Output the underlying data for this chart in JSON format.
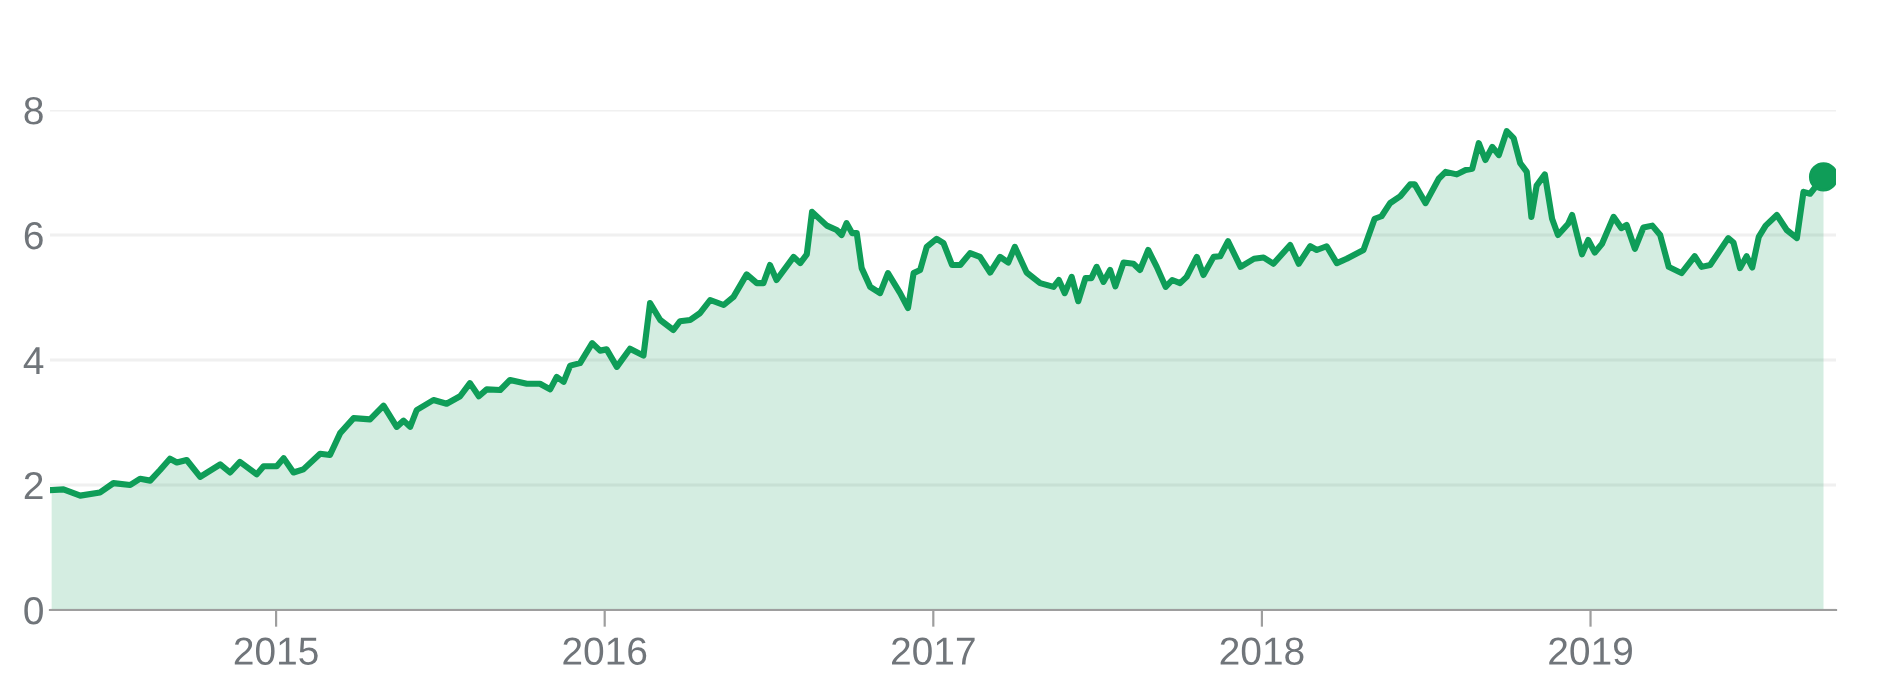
{
  "chart_data": {
    "type": "area",
    "xlim": [
      2014.312,
      2019.747
    ],
    "xticks": [
      2015,
      2016,
      2017,
      2018,
      2019
    ],
    "ylim": [
      0,
      8
    ],
    "yticks": [
      0,
      2,
      4,
      6,
      8
    ],
    "grid": "y",
    "series": [
      {
        "color": "#0f9d58",
        "x": [
          2014.317,
          2014.353,
          2014.404,
          2014.464,
          2014.505,
          2014.556,
          2014.586,
          2014.617,
          2014.647,
          2014.677,
          2014.698,
          2014.728,
          2014.769,
          2014.83,
          2014.86,
          2014.89,
          2014.941,
          2014.962,
          2015.002,
          2015.023,
          2015.053,
          2015.083,
          2015.134,
          2015.164,
          2015.195,
          2015.236,
          2015.286,
          2015.327,
          2015.367,
          2015.388,
          2015.408,
          2015.428,
          2015.479,
          2015.519,
          2015.56,
          2015.59,
          2015.617,
          2015.641,
          2015.682,
          2015.712,
          2015.763,
          2015.803,
          2015.834,
          2015.854,
          2015.875,
          2015.895,
          2015.925,
          2015.962,
          2015.986,
          2016.006,
          2016.037,
          2016.077,
          2016.118,
          2016.138,
          2016.169,
          2016.209,
          2016.229,
          2016.26,
          2016.29,
          2016.321,
          2016.362,
          2016.392,
          2016.432,
          2016.463,
          2016.483,
          2016.503,
          2016.523,
          2016.575,
          2016.595,
          2016.615,
          2016.631,
          2016.676,
          2016.706,
          2016.721,
          2016.736,
          2016.753,
          2016.767,
          2016.782,
          2016.808,
          2016.838,
          2016.862,
          2016.899,
          2016.923,
          2016.94,
          2016.96,
          2016.98,
          2017.01,
          2017.031,
          2017.057,
          2017.082,
          2017.112,
          2017.142,
          2017.173,
          2017.203,
          2017.228,
          2017.248,
          2017.284,
          2017.325,
          2017.366,
          2017.382,
          2017.4,
          2017.421,
          2017.441,
          2017.463,
          2017.481,
          2017.497,
          2017.518,
          2017.538,
          2017.554,
          2017.579,
          2017.609,
          2017.629,
          2017.654,
          2017.68,
          2017.707,
          2017.727,
          2017.751,
          2017.771,
          2017.802,
          2017.822,
          2017.853,
          2017.873,
          2017.897,
          2017.935,
          2017.976,
          2018.005,
          2018.035,
          2018.086,
          2018.112,
          2018.147,
          2018.167,
          2018.197,
          2018.228,
          2018.258,
          2018.309,
          2018.343,
          2018.364,
          2018.39,
          2018.421,
          2018.451,
          2018.465,
          2018.498,
          2018.538,
          2018.559,
          2018.593,
          2018.62,
          2018.64,
          2018.66,
          2018.68,
          2018.701,
          2018.721,
          2018.745,
          2018.766,
          2018.786,
          2018.806,
          2018.82,
          2018.836,
          2018.861,
          2018.883,
          2018.901,
          2018.932,
          2018.944,
          2018.974,
          2018.993,
          2019.013,
          2019.035,
          2019.07,
          2019.094,
          2019.11,
          2019.135,
          2019.161,
          2019.188,
          2019.212,
          2019.238,
          2019.277,
          2019.317,
          2019.338,
          2019.364,
          2019.419,
          2019.435,
          2019.455,
          2019.475,
          2019.492,
          2019.512,
          2019.533,
          2019.567,
          2019.597,
          2019.628,
          2019.648,
          2019.668,
          2019.709
        ],
        "values": [
          1.92,
          1.93,
          1.83,
          1.88,
          2.03,
          2.0,
          2.1,
          2.07,
          2.24,
          2.42,
          2.36,
          2.4,
          2.13,
          2.33,
          2.2,
          2.37,
          2.17,
          2.3,
          2.3,
          2.43,
          2.2,
          2.25,
          2.5,
          2.48,
          2.83,
          3.07,
          3.05,
          3.27,
          2.93,
          3.03,
          2.93,
          3.2,
          3.36,
          3.3,
          3.42,
          3.63,
          3.42,
          3.53,
          3.52,
          3.68,
          3.62,
          3.62,
          3.53,
          3.73,
          3.65,
          3.91,
          3.95,
          4.27,
          4.15,
          4.17,
          3.89,
          4.18,
          4.07,
          4.91,
          4.64,
          4.48,
          4.62,
          4.64,
          4.75,
          4.96,
          4.88,
          5.01,
          5.37,
          5.23,
          5.23,
          5.52,
          5.28,
          5.65,
          5.55,
          5.69,
          6.37,
          6.15,
          6.08,
          6.0,
          6.19,
          6.03,
          6.03,
          5.47,
          5.17,
          5.07,
          5.39,
          5.07,
          4.83,
          5.39,
          5.44,
          5.81,
          5.94,
          5.87,
          5.52,
          5.52,
          5.71,
          5.65,
          5.4,
          5.65,
          5.56,
          5.81,
          5.4,
          5.23,
          5.17,
          5.28,
          5.07,
          5.33,
          4.94,
          5.31,
          5.31,
          5.49,
          5.25,
          5.44,
          5.18,
          5.56,
          5.54,
          5.44,
          5.76,
          5.49,
          5.17,
          5.28,
          5.23,
          5.33,
          5.65,
          5.36,
          5.65,
          5.66,
          5.9,
          5.49,
          5.62,
          5.64,
          5.54,
          5.84,
          5.54,
          5.82,
          5.76,
          5.82,
          5.55,
          5.62,
          5.76,
          6.26,
          6.3,
          6.51,
          6.62,
          6.81,
          6.81,
          6.51,
          6.9,
          7.01,
          6.97,
          7.04,
          7.06,
          7.47,
          7.2,
          7.41,
          7.28,
          7.66,
          7.55,
          7.15,
          7.01,
          6.29,
          6.79,
          6.97,
          6.26,
          6.0,
          6.18,
          6.32,
          5.69,
          5.92,
          5.72,
          5.86,
          6.29,
          6.11,
          6.16,
          5.78,
          6.12,
          6.15,
          6.0,
          5.49,
          5.39,
          5.66,
          5.49,
          5.52,
          5.95,
          5.88,
          5.47,
          5.66,
          5.48,
          5.97,
          6.15,
          6.32,
          6.08,
          5.95,
          6.69,
          6.66,
          6.93
        ]
      },
      {
        "type": "scatter",
        "color": "#0f9d58",
        "x": [
          2019.709
        ],
        "values": [
          6.93
        ]
      }
    ]
  }
}
